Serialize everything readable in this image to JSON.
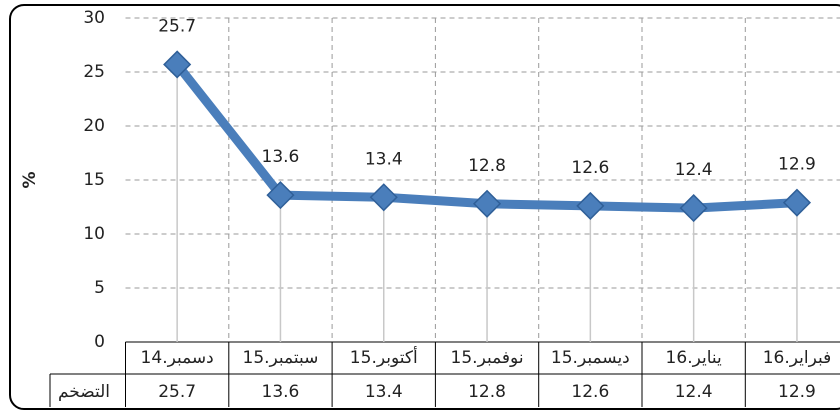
{
  "chart_data": {
    "type": "line",
    "y_label": "%",
    "row_label": "التضخم",
    "categories": [
      "دسمبر.14",
      "سبتمبر.15",
      "أكتوبر.15",
      "نوفمبر.15",
      "ديسمبر.15",
      "يناير.16",
      "فبراير.16"
    ],
    "values": [
      25.7,
      13.6,
      13.4,
      12.8,
      12.6,
      12.4,
      12.9
    ],
    "color": "#4a7ebb",
    "ylim": [
      0,
      30
    ],
    "yticks": [
      0,
      5,
      10,
      15,
      20,
      25,
      30
    ],
    "grid": true
  }
}
